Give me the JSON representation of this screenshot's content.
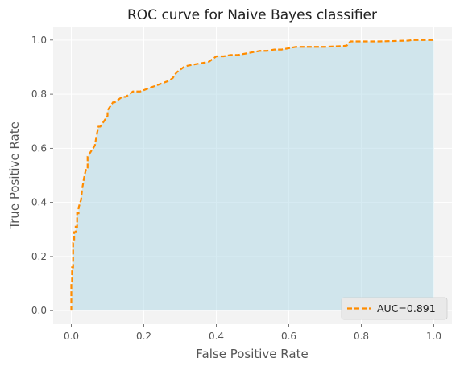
{
  "chart_data": {
    "type": "area",
    "title": "ROC curve for Naive Bayes classifier",
    "xlabel": "False Positive Rate",
    "ylabel": "True Positive Rate",
    "xlim": [
      -0.05,
      1.05
    ],
    "ylim": [
      -0.05,
      1.05
    ],
    "xticks": [
      "0.0",
      "0.2",
      "0.4",
      "0.6",
      "0.8",
      "1.0"
    ],
    "yticks": [
      "0.0",
      "0.2",
      "0.4",
      "0.6",
      "0.8",
      "1.0"
    ],
    "grid": true,
    "legend_position": "bottom-right",
    "colors": {
      "curve": "#ff8c00",
      "fill": "#add8e6",
      "background": "#f3f3f3",
      "grid": "#ffffff"
    },
    "series": [
      {
        "name": "AUC=0.891",
        "style": "dashed",
        "x": [
          0.0,
          0.0,
          0.002,
          0.002,
          0.005,
          0.005,
          0.008,
          0.008,
          0.012,
          0.012,
          0.016,
          0.016,
          0.02,
          0.02,
          0.027,
          0.03,
          0.035,
          0.04,
          0.045,
          0.045,
          0.05,
          0.055,
          0.06,
          0.065,
          0.07,
          0.075,
          0.08,
          0.085,
          0.09,
          0.1,
          0.1,
          0.105,
          0.11,
          0.115,
          0.12,
          0.13,
          0.14,
          0.15,
          0.16,
          0.17,
          0.18,
          0.19,
          0.2,
          0.21,
          0.22,
          0.23,
          0.24,
          0.25,
          0.26,
          0.27,
          0.28,
          0.29,
          0.3,
          0.31,
          0.32,
          0.34,
          0.36,
          0.38,
          0.39,
          0.4,
          0.42,
          0.44,
          0.46,
          0.48,
          0.5,
          0.52,
          0.54,
          0.56,
          0.58,
          0.6,
          0.62,
          0.65,
          0.7,
          0.75,
          0.76,
          0.77,
          0.8,
          0.85,
          0.9,
          0.93,
          0.94,
          1.0
        ],
        "y": [
          0.0,
          0.1,
          0.1,
          0.16,
          0.16,
          0.25,
          0.25,
          0.29,
          0.29,
          0.31,
          0.31,
          0.36,
          0.36,
          0.38,
          0.41,
          0.45,
          0.49,
          0.52,
          0.52,
          0.57,
          0.58,
          0.59,
          0.6,
          0.61,
          0.65,
          0.68,
          0.68,
          0.69,
          0.7,
          0.72,
          0.74,
          0.75,
          0.76,
          0.77,
          0.77,
          0.78,
          0.79,
          0.79,
          0.8,
          0.81,
          0.81,
          0.81,
          0.815,
          0.82,
          0.825,
          0.83,
          0.835,
          0.84,
          0.845,
          0.85,
          0.86,
          0.88,
          0.89,
          0.9,
          0.905,
          0.91,
          0.915,
          0.92,
          0.93,
          0.94,
          0.94,
          0.945,
          0.945,
          0.95,
          0.955,
          0.96,
          0.96,
          0.965,
          0.965,
          0.97,
          0.975,
          0.975,
          0.975,
          0.978,
          0.98,
          0.995,
          0.995,
          0.995,
          0.997,
          0.998,
          1.0,
          1.0
        ]
      }
    ]
  }
}
